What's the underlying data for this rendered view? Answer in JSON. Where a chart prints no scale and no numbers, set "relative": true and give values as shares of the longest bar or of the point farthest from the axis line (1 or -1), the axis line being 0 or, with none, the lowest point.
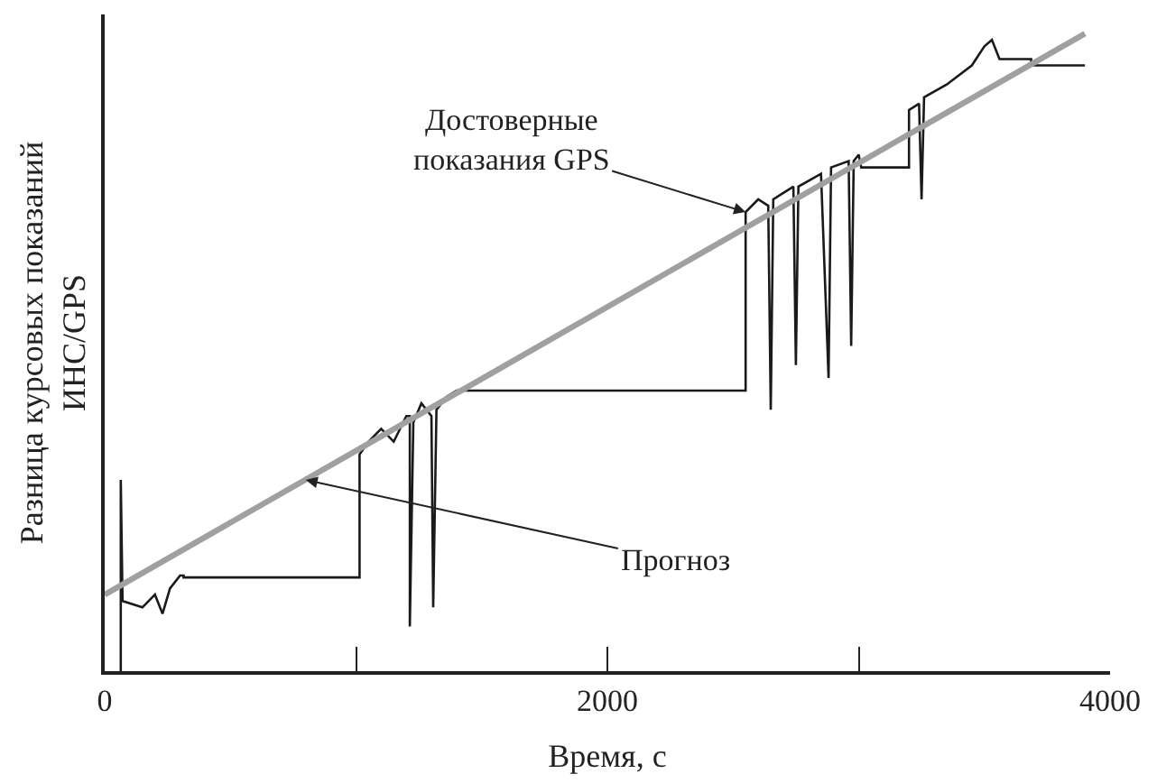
{
  "chart_data": {
    "type": "line",
    "relative": true,
    "xlabel": "Время, с",
    "ylabel": "Разница курсовых показаний\nИНС/GPS",
    "xlim": [
      0,
      4000
    ],
    "xticks": [
      0,
      {
        "value": 1000,
        "label": null
      },
      2000,
      {
        "value": 3000,
        "label": null
      },
      4000
    ],
    "marker": "none",
    "line_style": "solid",
    "series": [
      {
        "color": "#1a1a1a",
        "x": [
          64,
          64,
          71,
          150,
          200,
          230,
          260,
          300,
          314,
          314,
          1014,
          1014,
          1050,
          1100,
          1150,
          1200,
          1214,
          1214,
          1228,
          1260,
          1300,
          1307,
          1320,
          1360,
          1400,
          1414,
          1414,
          2550,
          2550,
          2600,
          2640,
          2650,
          2660,
          2700,
          2740,
          2750,
          2760,
          2850,
          2880,
          2890,
          2960,
          2970,
          2980,
          3000,
          3010,
          3200,
          3200,
          3240,
          3250,
          3260,
          3350,
          3450,
          3500,
          3530,
          3560,
          3686,
          3686,
          3900
        ],
        "values": [
          0.0,
          0.3,
          0.11,
          0.1,
          0.12,
          0.09,
          0.13,
          0.15,
          0.15,
          0.147,
          0.147,
          0.34,
          0.36,
          0.38,
          0.36,
          0.4,
          0.4,
          0.07,
          0.39,
          0.42,
          0.4,
          0.1,
          0.41,
          0.43,
          0.44,
          0.44,
          0.44,
          0.44,
          0.72,
          0.74,
          0.73,
          0.41,
          0.74,
          0.75,
          0.76,
          0.48,
          0.76,
          0.78,
          0.46,
          0.79,
          0.8,
          0.51,
          0.8,
          0.81,
          0.79,
          0.79,
          0.88,
          0.89,
          0.74,
          0.9,
          0.92,
          0.95,
          0.98,
          0.99,
          0.96,
          0.96,
          0.95,
          0.95
        ]
      },
      {
        "color": "#a0a0a0",
        "x": [
          0,
          3900
        ],
        "values": [
          0.12,
          1.0
        ]
      }
    ],
    "annotations": [
      {
        "text": "Достоверные\nпоказания GPS",
        "x": 2550,
        "y": 0.72
      },
      {
        "text": "Прогноз",
        "x": 800,
        "y": 0.3
      }
    ]
  }
}
